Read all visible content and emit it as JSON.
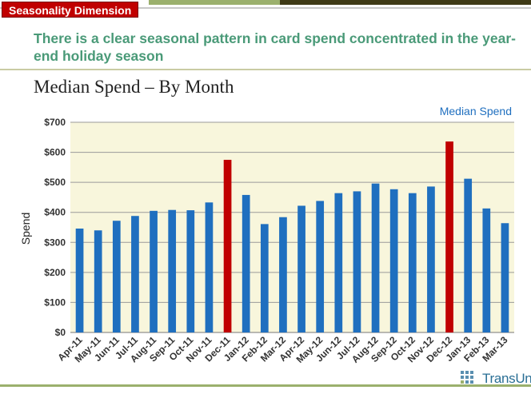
{
  "section_tag": "Seasonality Dimension",
  "headline": "There is a clear seasonal pattern in card spend concentrated in the year-end holiday season",
  "logo_text": "TransUnion",
  "chart_data": {
    "type": "bar",
    "title": "Median Spend – By Month",
    "ylabel": "Spend",
    "xlabel": "",
    "ylim": [
      0,
      700
    ],
    "yticks": [
      "$0",
      "$100",
      "$200",
      "$300",
      "$400",
      "$500",
      "$600",
      "$700"
    ],
    "grid": true,
    "legend_position": "top-right",
    "categories": [
      "Apr-11",
      "May-11",
      "Jun-11",
      "Jul-11",
      "Aug-11",
      "Sep-11",
      "Oct-11",
      "Nov-11",
      "Dec-11",
      "Jan-12",
      "Feb-12",
      "Mar-12",
      "Apr-12",
      "May-12",
      "Jun-12",
      "Jul-12",
      "Aug-12",
      "Sep-12",
      "Oct-12",
      "Nov-12",
      "Dec-12",
      "Jan-13",
      "Feb-13",
      "Mar-13"
    ],
    "series": [
      {
        "name": "Median Spend",
        "color": "#1f6fbf",
        "highlight_color": "#c00000",
        "highlight_categories": [
          "Dec-11",
          "Dec-12"
        ],
        "values": [
          346,
          340,
          372,
          388,
          405,
          408,
          407,
          433,
          575,
          458,
          361,
          384,
          422,
          438,
          464,
          470,
          496,
          477,
          464,
          486,
          636,
          512,
          413,
          364
        ]
      }
    ]
  }
}
